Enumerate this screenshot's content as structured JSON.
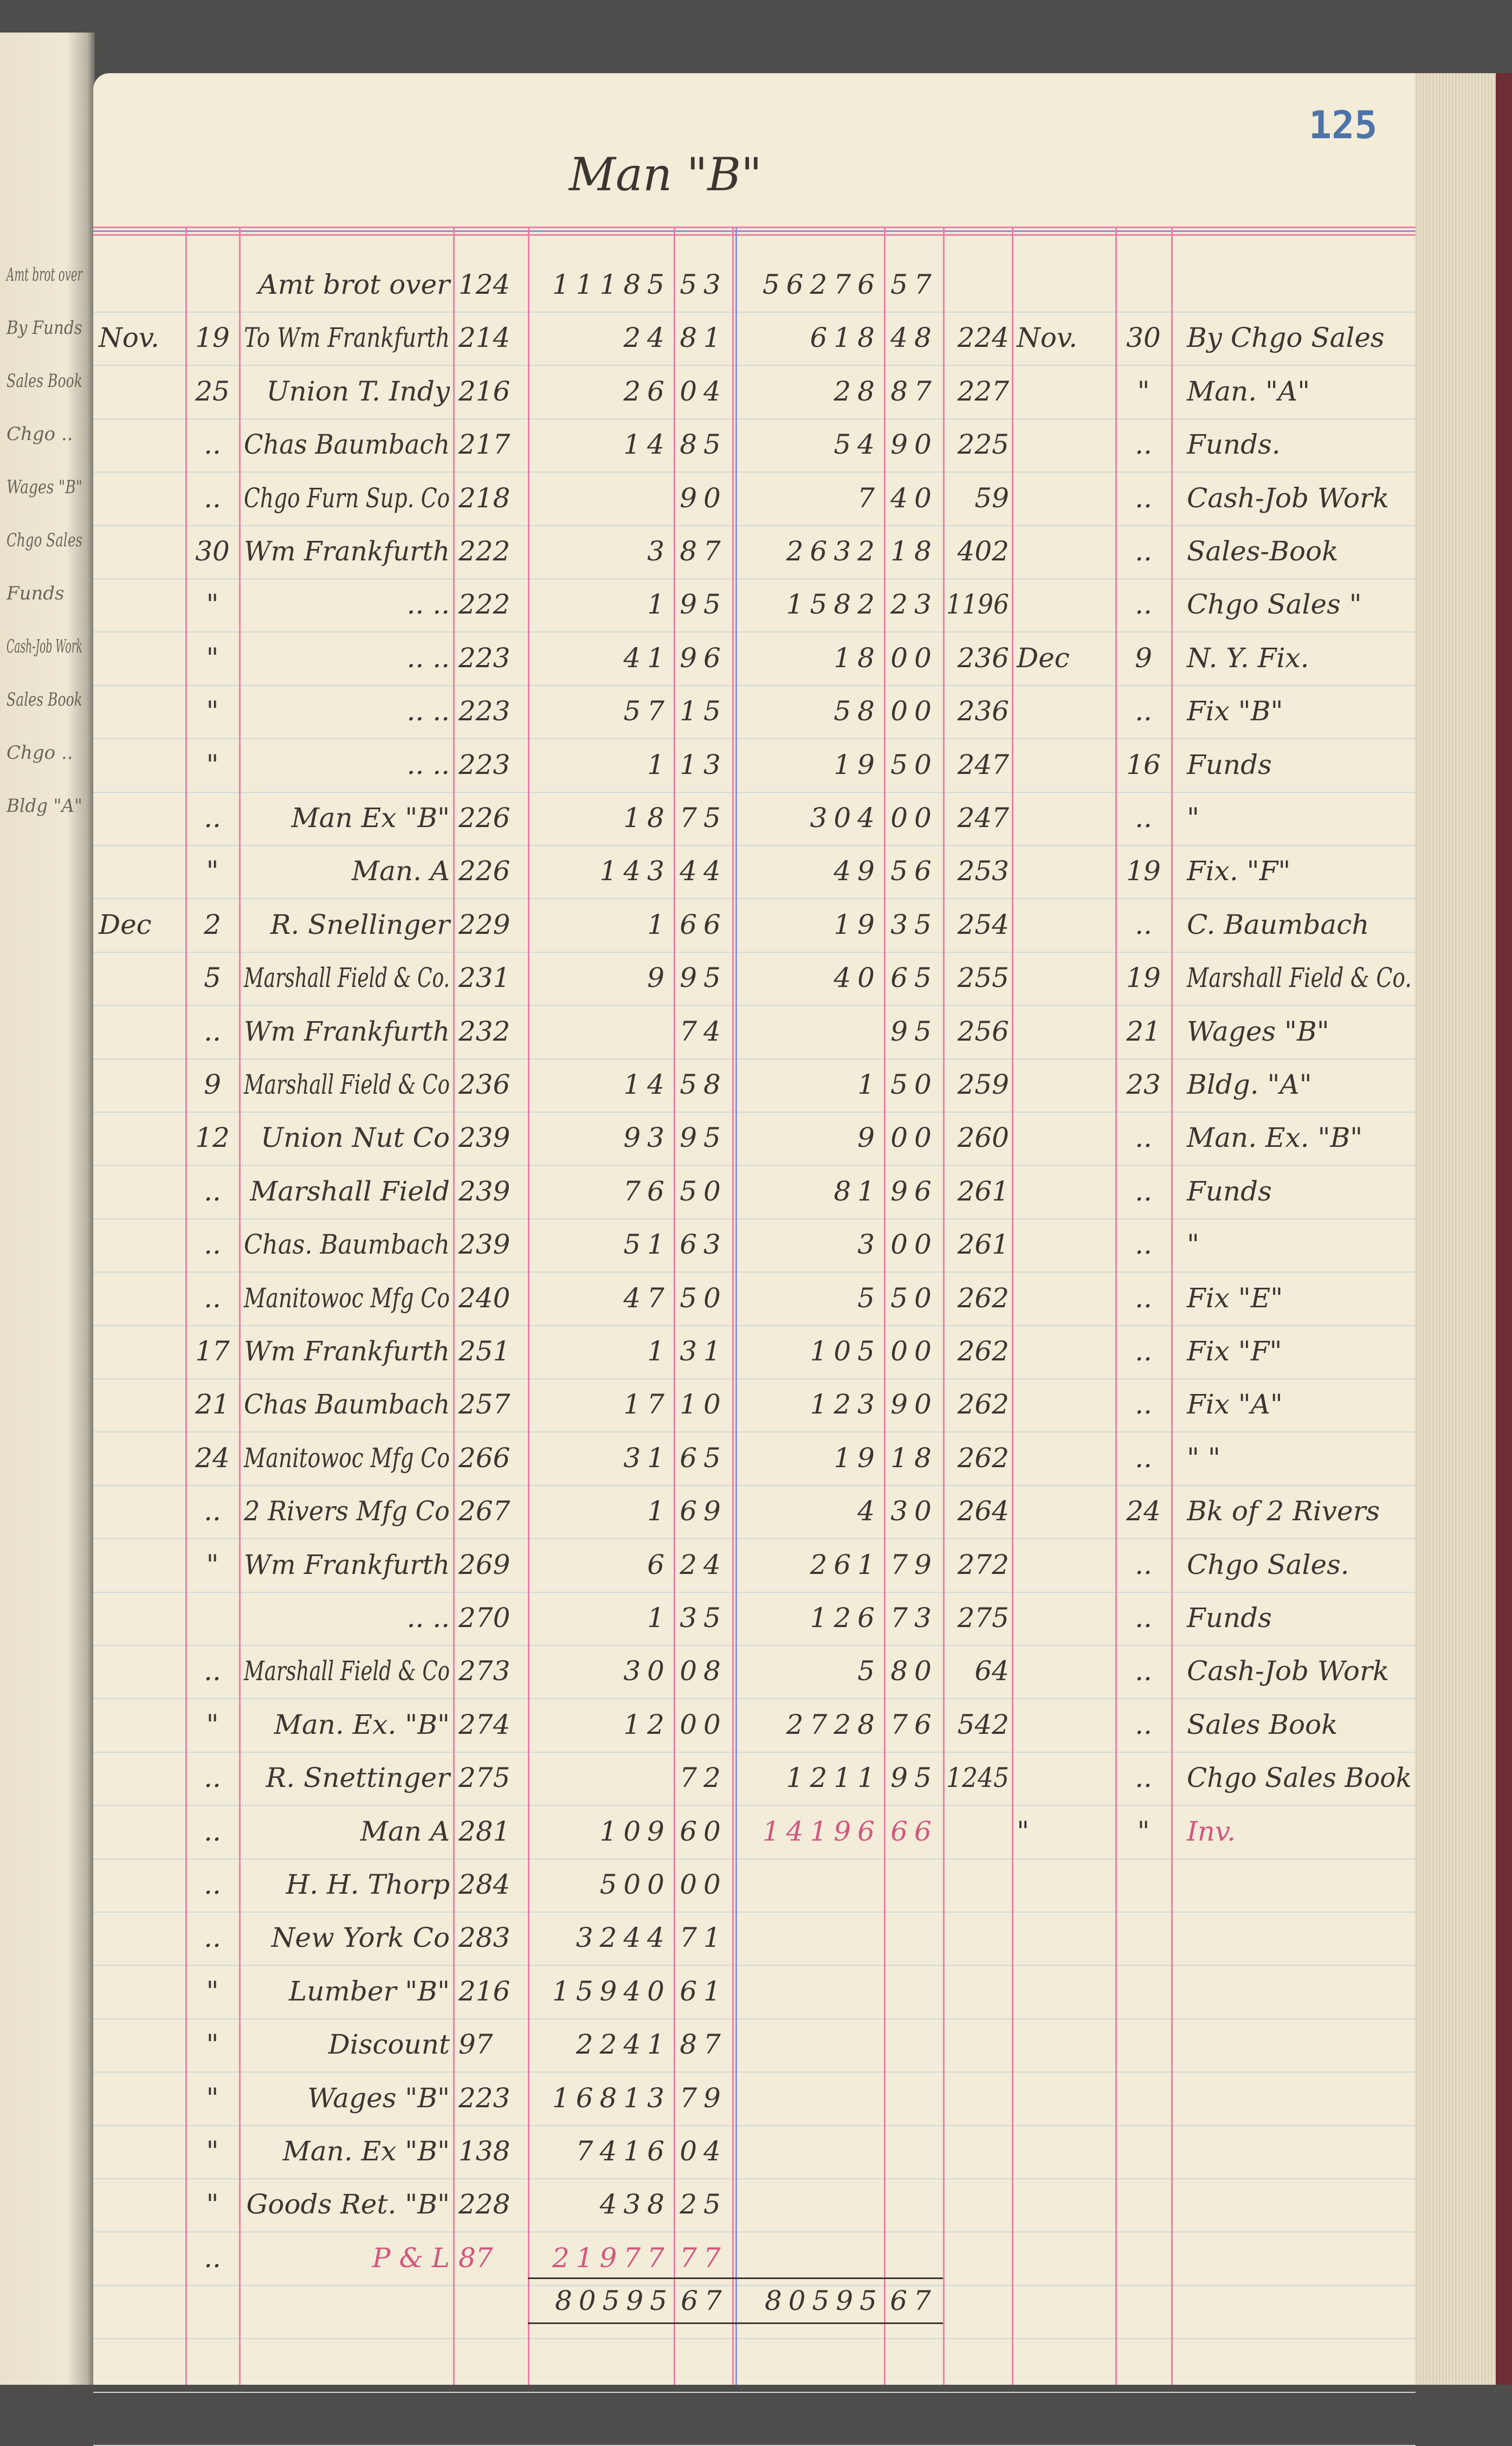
{
  "page": {
    "title": "Man \"B\"",
    "page_number": "125"
  },
  "previous_page_fragments": [
    "Amt brot over",
    "By Funds",
    "Sales Book",
    "Chgo ..",
    "Wages \"B\"",
    "Chgo Sales",
    "Funds",
    "Cash-Job Work",
    "Sales Book",
    "Chgo ..",
    "Bldg \"A\""
  ],
  "colors": {
    "ink": "#3b3630",
    "red_ink": "#d2577f",
    "rule_red": "#ec7fa6",
    "rule_blue": "#8d8fd6",
    "page_number": "#4d73a8"
  },
  "rows": [
    {
      "month": "",
      "day": "",
      "desc": "Amt brot over",
      "folio": "124",
      "a1d": "11185",
      "a1c": "53",
      "a2d": "56276",
      "a2c": "57",
      "folio2": "",
      "month2": "",
      "day2": "",
      "desc2": ""
    },
    {
      "month": "Nov.",
      "day": "19",
      "desc": "To Wm Frankfurth",
      "folio": "214",
      "a1d": "24",
      "a1c": "81",
      "a2d": "618",
      "a2c": "48",
      "folio2": "224",
      "month2": "Nov.",
      "day2": "30",
      "desc2": "By Chgo Sales"
    },
    {
      "month": "",
      "day": "25",
      "desc": "Union T. Indy",
      "folio": "216",
      "a1d": "26",
      "a1c": "04",
      "a2d": "28",
      "a2c": "87",
      "folio2": "227",
      "month2": "",
      "day2": "\"",
      "desc2": "Man. \"A\""
    },
    {
      "month": "",
      "day": "..",
      "desc": "Chas Baumbach",
      "folio": "217",
      "a1d": "14",
      "a1c": "85",
      "a2d": "54",
      "a2c": "90",
      "folio2": "225",
      "month2": "",
      "day2": "..",
      "desc2": "Funds."
    },
    {
      "month": "",
      "day": "..",
      "desc": "Chgo Furn Sup. Co",
      "folio": "218",
      "a1d": "",
      "a1c": "90",
      "a2d": "7",
      "a2c": "40",
      "folio2": "59",
      "month2": "",
      "day2": "..",
      "desc2": "Cash-Job Work"
    },
    {
      "month": "",
      "day": "30",
      "desc": "Wm Frankfurth",
      "folio": "222",
      "a1d": "3",
      "a1c": "87",
      "a2d": "2632",
      "a2c": "18",
      "folio2": "402",
      "month2": "",
      "day2": "..",
      "desc2": "Sales-Book"
    },
    {
      "month": "",
      "day": "\"",
      "desc": "..      ..",
      "folio": "222",
      "a1d": "1",
      "a1c": "95",
      "a2d": "1582",
      "a2c": "23",
      "folio2": "1196",
      "month2": "",
      "day2": "..",
      "desc2": "Chgo Sales \""
    },
    {
      "month": "",
      "day": "\"",
      "desc": "..      ..",
      "folio": "223",
      "a1d": "41",
      "a1c": "96",
      "a2d": "18",
      "a2c": "00",
      "folio2": "236",
      "month2": "Dec",
      "day2": "9",
      "desc2": "N. Y. Fix."
    },
    {
      "month": "",
      "day": "\"",
      "desc": "..      ..",
      "folio": "223",
      "a1d": "57",
      "a1c": "15",
      "a2d": "58",
      "a2c": "00",
      "folio2": "236",
      "month2": "",
      "day2": "..",
      "desc2": "Fix \"B\""
    },
    {
      "month": "",
      "day": "\"",
      "desc": "..      ..",
      "folio": "223",
      "a1d": "1",
      "a1c": "13",
      "a2d": "19",
      "a2c": "50",
      "folio2": "247",
      "month2": "",
      "day2": "16",
      "desc2": "Funds"
    },
    {
      "month": "",
      "day": "..",
      "desc": "Man Ex \"B\"",
      "folio": "226",
      "a1d": "18",
      "a1c": "75",
      "a2d": "304",
      "a2c": "00",
      "folio2": "247",
      "month2": "",
      "day2": "..",
      "desc2": "\""
    },
    {
      "month": "",
      "day": "\"",
      "desc": "Man. A",
      "folio": "226",
      "a1d": "143",
      "a1c": "44",
      "a2d": "49",
      "a2c": "56",
      "folio2": "253",
      "month2": "",
      "day2": "19",
      "desc2": "Fix. \"F\""
    },
    {
      "month": "Dec",
      "day": "2",
      "desc": "R. Snellinger",
      "folio": "229",
      "a1d": "1",
      "a1c": "66",
      "a2d": "19",
      "a2c": "35",
      "folio2": "254",
      "month2": "",
      "day2": "..",
      "desc2": "C. Baumbach"
    },
    {
      "month": "",
      "day": "5",
      "desc": "Marshall Field & Co.",
      "folio": "231",
      "a1d": "9",
      "a1c": "95",
      "a2d": "40",
      "a2c": "65",
      "folio2": "255",
      "month2": "",
      "day2": "19",
      "desc2": "Marshall Field & Co."
    },
    {
      "month": "",
      "day": "..",
      "desc": "Wm Frankfurth",
      "folio": "232",
      "a1d": "",
      "a1c": "74",
      "a2d": "",
      "a2c": "95",
      "folio2": "256",
      "month2": "",
      "day2": "21",
      "desc2": "Wages \"B\""
    },
    {
      "month": "",
      "day": "9",
      "desc": "Marshall Field & Co",
      "folio": "236",
      "a1d": "14",
      "a1c": "58",
      "a2d": "1",
      "a2c": "50",
      "folio2": "259",
      "month2": "",
      "day2": "23",
      "desc2": "Bldg. \"A\""
    },
    {
      "month": "",
      "day": "12",
      "desc": "Union Nut Co",
      "folio": "239",
      "a1d": "93",
      "a1c": "95",
      "a2d": "9",
      "a2c": "00",
      "folio2": "260",
      "month2": "",
      "day2": "..",
      "desc2": "Man. Ex. \"B\""
    },
    {
      "month": "",
      "day": "..",
      "desc": "Marshall Field",
      "folio": "239",
      "a1d": "76",
      "a1c": "50",
      "a2d": "81",
      "a2c": "96",
      "folio2": "261",
      "month2": "",
      "day2": "..",
      "desc2": "Funds"
    },
    {
      "month": "",
      "day": "..",
      "desc": "Chas. Baumbach",
      "folio": "239",
      "a1d": "51",
      "a1c": "63",
      "a2d": "3",
      "a2c": "00",
      "folio2": "261",
      "month2": "",
      "day2": "..",
      "desc2": "\""
    },
    {
      "month": "",
      "day": "..",
      "desc": "Manitowoc Mfg Co",
      "folio": "240",
      "a1d": "47",
      "a1c": "50",
      "a2d": "5",
      "a2c": "50",
      "folio2": "262",
      "month2": "",
      "day2": "..",
      "desc2": "Fix \"E\""
    },
    {
      "month": "",
      "day": "17",
      "desc": "Wm Frankfurth",
      "folio": "251",
      "a1d": "1",
      "a1c": "31",
      "a2d": "105",
      "a2c": "00",
      "folio2": "262",
      "month2": "",
      "day2": "..",
      "desc2": "Fix \"F\""
    },
    {
      "month": "",
      "day": "21",
      "desc": "Chas Baumbach",
      "folio": "257",
      "a1d": "17",
      "a1c": "10",
      "a2d": "123",
      "a2c": "90",
      "folio2": "262",
      "month2": "",
      "day2": "..",
      "desc2": "Fix \"A\""
    },
    {
      "month": "",
      "day": "24",
      "desc": "Manitowoc Mfg Co",
      "folio": "266",
      "a1d": "31",
      "a1c": "65",
      "a2d": "19",
      "a2c": "18",
      "folio2": "262",
      "month2": "",
      "day2": "..",
      "desc2": "\"     \""
    },
    {
      "month": "",
      "day": "..",
      "desc": "2 Rivers Mfg Co",
      "folio": "267",
      "a1d": "1",
      "a1c": "69",
      "a2d": "4",
      "a2c": "30",
      "folio2": "264",
      "month2": "",
      "day2": "24",
      "desc2": "Bk of 2 Rivers"
    },
    {
      "month": "",
      "day": "\"",
      "desc": "Wm Frankfurth",
      "folio": "269",
      "a1d": "6",
      "a1c": "24",
      "a2d": "261",
      "a2c": "79",
      "folio2": "272",
      "month2": "",
      "day2": "..",
      "desc2": "Chgo Sales."
    },
    {
      "month": "",
      "day": "",
      "desc": "..      ..",
      "folio": "270",
      "a1d": "1",
      "a1c": "35",
      "a2d": "126",
      "a2c": "73",
      "folio2": "275",
      "month2": "",
      "day2": "..",
      "desc2": "Funds"
    },
    {
      "month": "",
      "day": "..",
      "desc": "Marshall Field & Co",
      "folio": "273",
      "a1d": "30",
      "a1c": "08",
      "a2d": "5",
      "a2c": "80",
      "folio2": "64",
      "month2": "",
      "day2": "..",
      "desc2": "Cash-Job Work"
    },
    {
      "month": "",
      "day": "\"",
      "desc": "Man. Ex. \"B\"",
      "folio": "274",
      "a1d": "12",
      "a1c": "00",
      "a2d": "2728",
      "a2c": "76",
      "folio2": "542",
      "month2": "",
      "day2": "..",
      "desc2": "Sales Book"
    },
    {
      "month": "",
      "day": "..",
      "desc": "R. Snettinger",
      "folio": "275",
      "a1d": "",
      "a1c": "72",
      "a2d": "1211",
      "a2c": "95",
      "folio2": "1245",
      "month2": "",
      "day2": "..",
      "desc2": "Chgo Sales Book"
    },
    {
      "month": "",
      "day": "..",
      "desc": "Man A",
      "folio": "281",
      "a1d": "109",
      "a1c": "60",
      "a2d": "14196",
      "a2c": "66",
      "folio2": "",
      "month2": "\"",
      "day2": "\"",
      "desc2": "Inv.",
      "red2": true
    },
    {
      "month": "",
      "day": "..",
      "desc": "H. H. Thorp",
      "folio": "284",
      "a1d": "500",
      "a1c": "00",
      "a2d": "",
      "a2c": "",
      "folio2": "",
      "month2": "",
      "day2": "",
      "desc2": ""
    },
    {
      "month": "",
      "day": "..",
      "desc": "New York Co",
      "folio": "283",
      "a1d": "3244",
      "a1c": "71",
      "a2d": "",
      "a2c": "",
      "folio2": "",
      "month2": "",
      "day2": "",
      "desc2": ""
    },
    {
      "month": "",
      "day": "\"",
      "desc": "Lumber \"B\"",
      "folio": "216",
      "a1d": "15940",
      "a1c": "61",
      "a2d": "",
      "a2c": "",
      "folio2": "",
      "month2": "",
      "day2": "",
      "desc2": ""
    },
    {
      "month": "",
      "day": "\"",
      "desc": "Discount",
      "folio": "97",
      "a1d": "2241",
      "a1c": "87",
      "a2d": "",
      "a2c": "",
      "folio2": "",
      "month2": "",
      "day2": "",
      "desc2": ""
    },
    {
      "month": "",
      "day": "\"",
      "desc": "Wages \"B\"",
      "folio": "223",
      "a1d": "16813",
      "a1c": "79",
      "a2d": "",
      "a2c": "",
      "folio2": "",
      "month2": "",
      "day2": "",
      "desc2": ""
    },
    {
      "month": "",
      "day": "\"",
      "desc": "Man. Ex \"B\"",
      "folio": "138",
      "a1d": "7416",
      "a1c": "04",
      "a2d": "",
      "a2c": "",
      "folio2": "",
      "month2": "",
      "day2": "",
      "desc2": ""
    },
    {
      "month": "",
      "day": "\"",
      "desc": "Goods Ret. \"B\"",
      "folio": "228",
      "a1d": "438",
      "a1c": "25",
      "a2d": "",
      "a2c": "",
      "folio2": "",
      "month2": "",
      "day2": "",
      "desc2": ""
    },
    {
      "month": "",
      "day": "..",
      "desc": "P & L",
      "folio": "87",
      "a1d": "21977",
      "a1c": "77",
      "a2d": "",
      "a2c": "",
      "folio2": "",
      "month2": "",
      "day2": "",
      "desc2": "",
      "red1": true
    }
  ],
  "totals": {
    "a1d": "80595",
    "a1c": "67",
    "a2d": "80595",
    "a2c": "67"
  }
}
